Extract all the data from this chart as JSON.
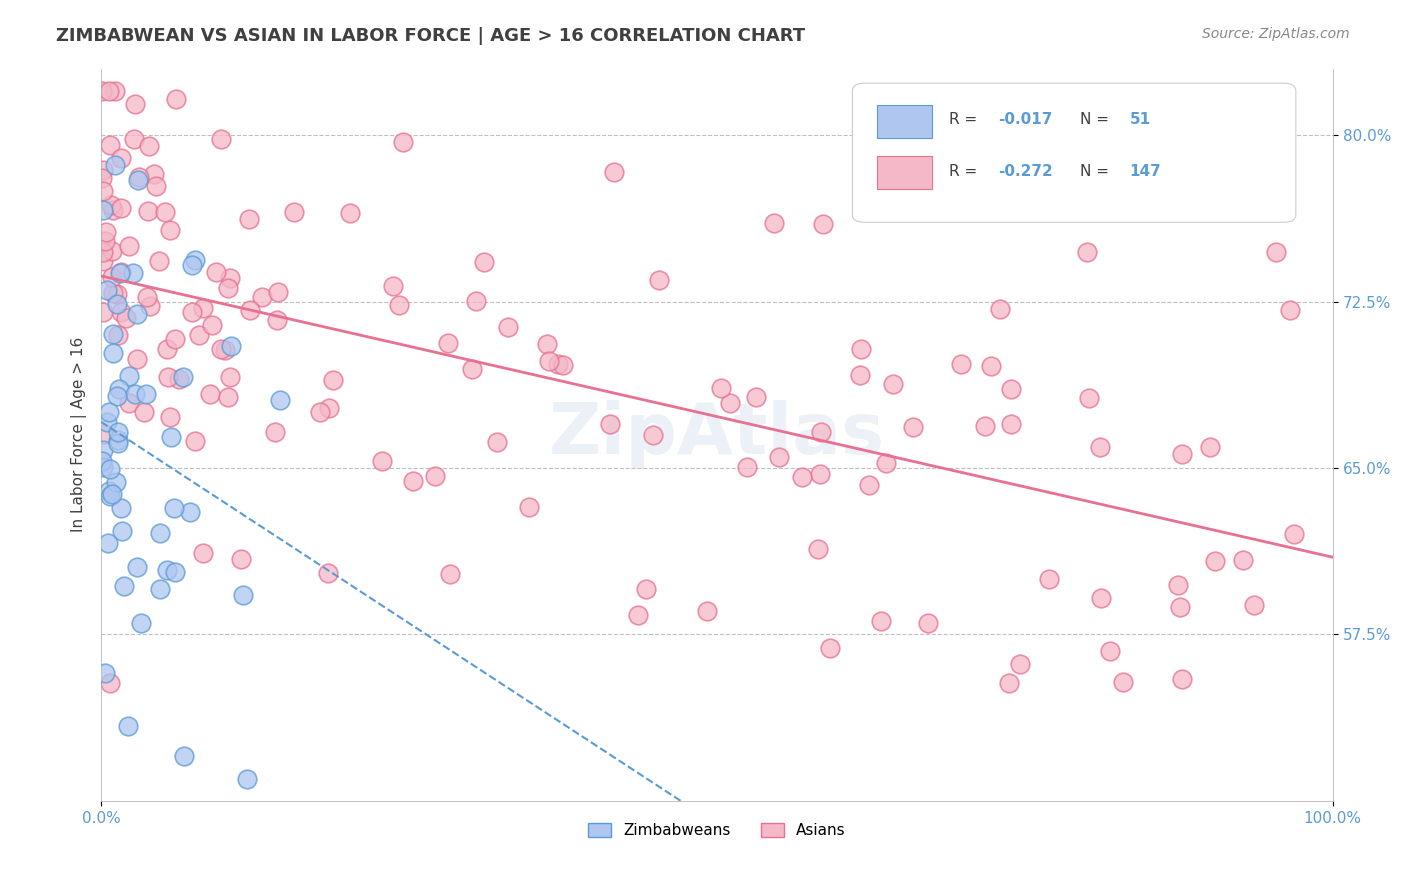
{
  "title": "ZIMBABWEAN VS ASIAN IN LABOR FORCE | AGE > 16 CORRELATION CHART",
  "source_text": "Source: ZipAtlas.com",
  "xlabel": "",
  "ylabel": "In Labor Force | Age > 16",
  "x_min": 0.0,
  "x_max": 1.0,
  "y_min": 0.5,
  "y_max": 0.83,
  "y_ticks": [
    0.575,
    0.65,
    0.725,
    0.8
  ],
  "y_tick_labels": [
    "57.5%",
    "65.0%",
    "72.5%",
    "80.0%"
  ],
  "zimbabwean_color": "#aec6f0",
  "zimbabwean_edge_color": "#5b9bd5",
  "asian_color": "#f4b8c8",
  "asian_edge_color": "#e87090",
  "zimbabwean_R": -0.017,
  "zimbabwean_N": 51,
  "asian_R": -0.272,
  "asian_N": 147,
  "legend_label_zimbabwean": "Zimbabweans",
  "legend_label_asian": "Asians",
  "grid_color": "#c0c0c0",
  "watermark": "ZipAtlas",
  "background_color": "#ffffff",
  "title_color": "#404040",
  "axis_label_color": "#404040",
  "tick_label_color": "#5b9bd5",
  "legend_R_color": "#5b9bd5",
  "zimbabwean_line_color": "#5b9bd5",
  "asian_line_color": "#e87090"
}
